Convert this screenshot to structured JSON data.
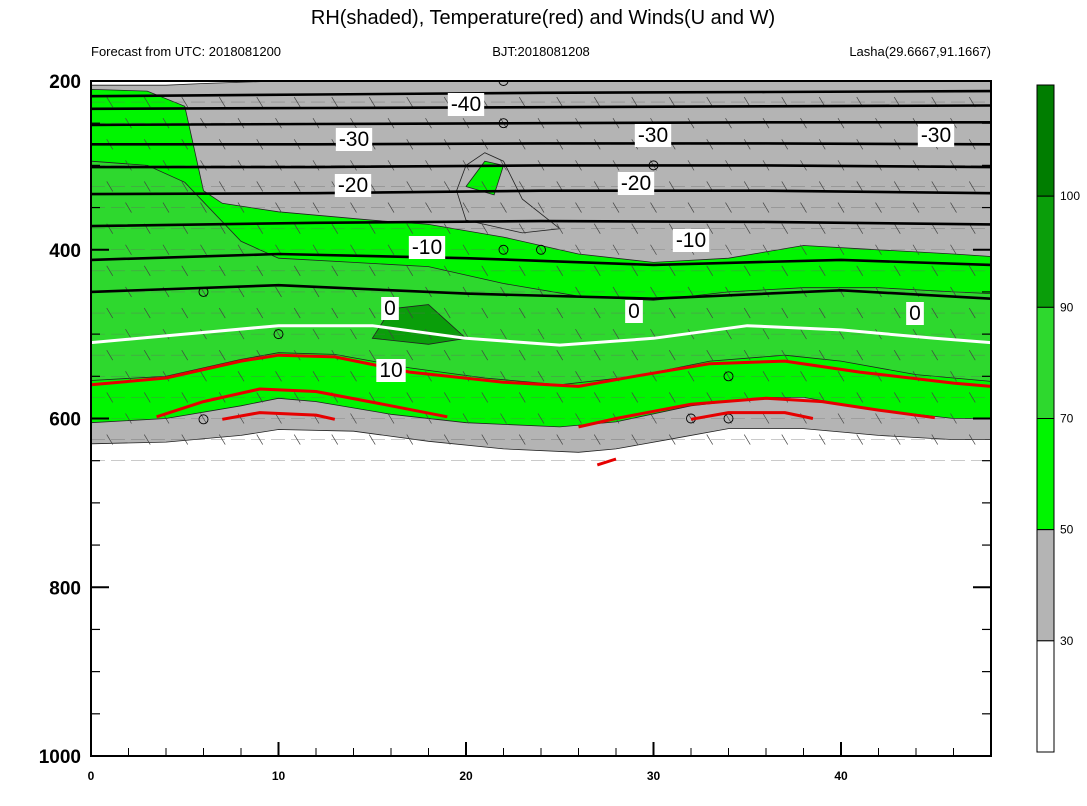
{
  "chart_data": {
    "type": "contour",
    "title": "RH(shaded), Temperature(red) and Winds(U and W)",
    "subtitle_left": "Forecast from UTC: 2018081200",
    "subtitle_center": "BJT:2018081208",
    "subtitle_right": "Lasha(29.6667,91.1667)",
    "xlim": [
      0,
      48
    ],
    "ylim": [
      1000,
      200
    ],
    "x_ticks": [
      "0",
      "10",
      "20",
      "30",
      "40"
    ],
    "y_ticks": [
      "200",
      "400",
      "600",
      "800",
      "1000"
    ],
    "colorbar": {
      "labels": [
        "30",
        "50",
        "70",
        "90",
        "100"
      ],
      "colors": [
        "#ffffff",
        "#b4b4b4",
        "#00f500",
        "#2ed82e",
        "#0a9e0a",
        "#007d00"
      ]
    },
    "temperature_contour_labels": [
      "-40",
      "-30",
      "-30",
      "-30",
      "-20",
      "-20",
      "-10",
      "-10",
      "0",
      "0",
      "0",
      "10"
    ],
    "rh_bands": [
      {
        "name": "gray",
        "color": "#b4b4b4",
        "top": [
          [
            0,
            205
          ],
          [
            4,
            205
          ],
          [
            6,
            203
          ],
          [
            10,
            200
          ],
          [
            20,
            200
          ],
          [
            25,
            200
          ],
          [
            44,
            200
          ],
          [
            48,
            200
          ]
        ],
        "bottom": [
          [
            0,
            630
          ],
          [
            4,
            628
          ],
          [
            8,
            620
          ],
          [
            10,
            613
          ],
          [
            14,
            615
          ],
          [
            18,
            627
          ],
          [
            22,
            636
          ],
          [
            26,
            640
          ],
          [
            28,
            636
          ],
          [
            31,
            624
          ],
          [
            34,
            612
          ],
          [
            38,
            612
          ],
          [
            42,
            620
          ],
          [
            46,
            625
          ],
          [
            48,
            625
          ]
        ]
      },
      {
        "name": "light-green",
        "color": "#00f500",
        "top": [
          [
            0,
            210
          ],
          [
            3,
            212
          ],
          [
            5,
            230
          ],
          [
            6,
            330
          ],
          [
            7,
            345
          ],
          [
            10,
            355
          ],
          [
            15,
            365
          ],
          [
            18,
            370
          ],
          [
            22,
            385
          ],
          [
            26,
            405
          ],
          [
            30,
            415
          ],
          [
            34,
            410
          ],
          [
            38,
            395
          ],
          [
            42,
            400
          ],
          [
            46,
            405
          ],
          [
            48,
            408
          ]
        ],
        "bottom": [
          [
            0,
            605
          ],
          [
            4,
            600
          ],
          [
            8,
            585
          ],
          [
            10,
            576
          ],
          [
            12,
            580
          ],
          [
            16,
            595
          ],
          [
            20,
            605
          ],
          [
            25,
            610
          ],
          [
            28,
            604
          ],
          [
            32,
            585
          ],
          [
            36,
            575
          ],
          [
            38,
            575
          ],
          [
            42,
            590
          ],
          [
            46,
            600
          ],
          [
            48,
            600
          ]
        ]
      },
      {
        "name": "mid-green",
        "color": "#2ed82e",
        "top": [
          [
            0,
            295
          ],
          [
            3,
            300
          ],
          [
            5,
            320
          ],
          [
            8,
            390
          ],
          [
            10,
            410
          ],
          [
            14,
            415
          ],
          [
            18,
            420
          ],
          [
            22,
            440
          ],
          [
            26,
            455
          ],
          [
            30,
            460
          ],
          [
            34,
            450
          ],
          [
            38,
            445
          ],
          [
            42,
            445
          ],
          [
            46,
            450
          ],
          [
            48,
            452
          ]
        ],
        "bottom": [
          [
            0,
            555
          ],
          [
            4,
            550
          ],
          [
            8,
            530
          ],
          [
            10,
            522
          ],
          [
            13,
            524
          ],
          [
            17,
            540
          ],
          [
            21,
            552
          ],
          [
            25,
            560
          ],
          [
            29,
            550
          ],
          [
            33,
            532
          ],
          [
            37,
            525
          ],
          [
            40,
            532
          ],
          [
            44,
            548
          ],
          [
            48,
            556
          ]
        ]
      },
      {
        "name": "dark-green",
        "color": "#0a9e0a",
        "top": [
          [
            15,
            505
          ],
          [
            16,
            470
          ],
          [
            18,
            465
          ],
          [
            20,
            505
          ]
        ],
        "bottom": [
          [
            20,
            505
          ],
          [
            18,
            512
          ],
          [
            15,
            505
          ]
        ]
      }
    ],
    "gray_patch": [
      [
        19.5,
        330
      ],
      [
        20,
        300
      ],
      [
        21,
        285
      ],
      [
        22,
        295
      ],
      [
        23,
        340
      ],
      [
        25,
        375
      ],
      [
        23,
        380
      ],
      [
        20,
        365
      ]
    ],
    "green_patch": [
      [
        20,
        325
      ],
      [
        21,
        295
      ],
      [
        22,
        300
      ],
      [
        21.5,
        335
      ]
    ],
    "temperature_lines": [
      {
        "level": -45,
        "y": [
          [
            0,
            218
          ],
          [
            12,
            216
          ],
          [
            24,
            214
          ],
          [
            36,
            213
          ],
          [
            48,
            212
          ]
        ]
      },
      {
        "level": -40,
        "y": [
          [
            0,
            233
          ],
          [
            12,
            232
          ],
          [
            24,
            231
          ],
          [
            36,
            230
          ],
          [
            48,
            229
          ]
        ]
      },
      {
        "level": -35,
        "y": [
          [
            0,
            252
          ],
          [
            12,
            251
          ],
          [
            24,
            250
          ],
          [
            36,
            249
          ],
          [
            48,
            249
          ]
        ]
      },
      {
        "level": -30,
        "y": [
          [
            0,
            275
          ],
          [
            12,
            275
          ],
          [
            24,
            274
          ],
          [
            36,
            274
          ],
          [
            48,
            275
          ]
        ]
      },
      {
        "level": -25,
        "y": [
          [
            0,
            302
          ],
          [
            12,
            302
          ],
          [
            24,
            300
          ],
          [
            36,
            300
          ],
          [
            48,
            302
          ]
        ]
      },
      {
        "level": -20,
        "y": [
          [
            0,
            334
          ],
          [
            12,
            333
          ],
          [
            24,
            330
          ],
          [
            36,
            330
          ],
          [
            48,
            333
          ]
        ]
      },
      {
        "level": -15,
        "y": [
          [
            0,
            372
          ],
          [
            12,
            368
          ],
          [
            24,
            366
          ],
          [
            36,
            367
          ],
          [
            48,
            370
          ]
        ]
      },
      {
        "level": -10,
        "y": [
          [
            0,
            412
          ],
          [
            10,
            405
          ],
          [
            20,
            410
          ],
          [
            30,
            418
          ],
          [
            40,
            412
          ],
          [
            48,
            418
          ]
        ]
      },
      {
        "level": -5,
        "y": [
          [
            0,
            450
          ],
          [
            10,
            442
          ],
          [
            20,
            452
          ],
          [
            30,
            458
          ],
          [
            40,
            448
          ],
          [
            48,
            458
          ]
        ]
      }
    ],
    "zero_line": [
      [
        0,
        510
      ],
      [
        5,
        500
      ],
      [
        10,
        490
      ],
      [
        15,
        490
      ],
      [
        20,
        505
      ],
      [
        25,
        513
      ],
      [
        30,
        505
      ],
      [
        35,
        490
      ],
      [
        40,
        495
      ],
      [
        45,
        505
      ],
      [
        48,
        510
      ]
    ],
    "red_lines": [
      [
        [
          0,
          560
        ],
        [
          4,
          552
        ],
        [
          8,
          532
        ],
        [
          10,
          525
        ],
        [
          13,
          527
        ],
        [
          17,
          545
        ],
        [
          22,
          557
        ],
        [
          26,
          562
        ],
        [
          29,
          550
        ],
        [
          33,
          535
        ],
        [
          37,
          532
        ],
        [
          41,
          545
        ],
        [
          46,
          558
        ],
        [
          48,
          562
        ]
      ],
      [
        [
          3.5,
          598
        ],
        [
          6,
          580
        ],
        [
          9,
          565
        ],
        [
          12,
          568
        ],
        [
          16,
          585
        ],
        [
          19,
          598
        ]
      ],
      [
        [
          26,
          610
        ],
        [
          28,
          600
        ],
        [
          32,
          583
        ],
        [
          36,
          576
        ],
        [
          39,
          580
        ],
        [
          42,
          590
        ],
        [
          45,
          599
        ]
      ],
      [
        [
          7,
          601
        ],
        [
          9,
          593
        ],
        [
          12,
          596
        ],
        [
          13,
          601
        ]
      ],
      [
        [
          32,
          601
        ],
        [
          34,
          593
        ],
        [
          37,
          593
        ],
        [
          38.5,
          600
        ]
      ],
      [
        [
          27,
          655
        ],
        [
          28,
          648
        ]
      ]
    ],
    "wind_zero_dots": [
      [
        6,
        601
      ],
      [
        6,
        450
      ],
      [
        10,
        500
      ],
      [
        22,
        250
      ],
      [
        22,
        400
      ],
      [
        24,
        400
      ],
      [
        30,
        300
      ],
      [
        32,
        600
      ],
      [
        34,
        600
      ],
      [
        34,
        550
      ],
      [
        22,
        200
      ]
    ]
  }
}
